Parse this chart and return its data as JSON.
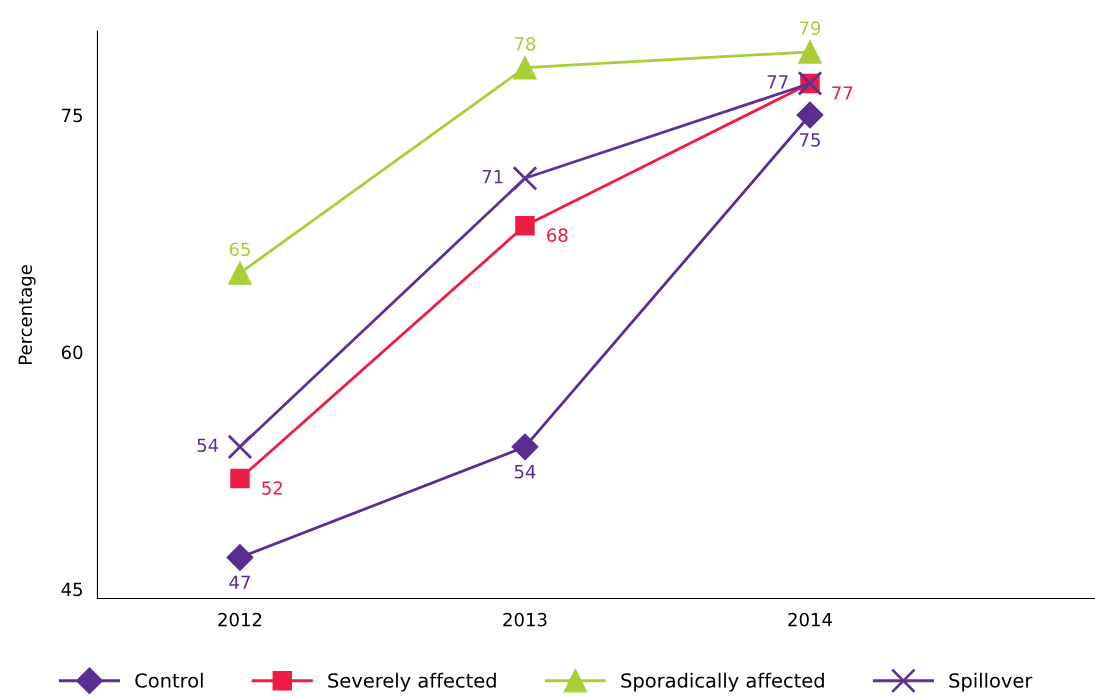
{
  "chart_data": {
    "type": "line",
    "ylabel": "Percentage",
    "categories": [
      "2012",
      "2013",
      "2014"
    ],
    "ylim": [
      44.4,
      80.3
    ],
    "yticks": [
      45,
      60,
      75
    ],
    "grid": false,
    "legend": "bottom",
    "data_labels": true,
    "series": [
      {
        "name": "Control",
        "color": "#5b2d90",
        "marker": "diamond",
        "values": [
          47,
          54,
          75
        ]
      },
      {
        "name": "Severely affected",
        "color": "#ee1c44",
        "marker": "square",
        "values": [
          52,
          68,
          77
        ]
      },
      {
        "name": "Sporadically affected",
        "color": "#a8cf38",
        "marker": "triangle",
        "values": [
          65,
          78,
          79
        ]
      },
      {
        "name": "Spillover",
        "color": "#5e3290",
        "marker": "cross",
        "values": [
          54,
          71,
          77
        ]
      }
    ]
  }
}
